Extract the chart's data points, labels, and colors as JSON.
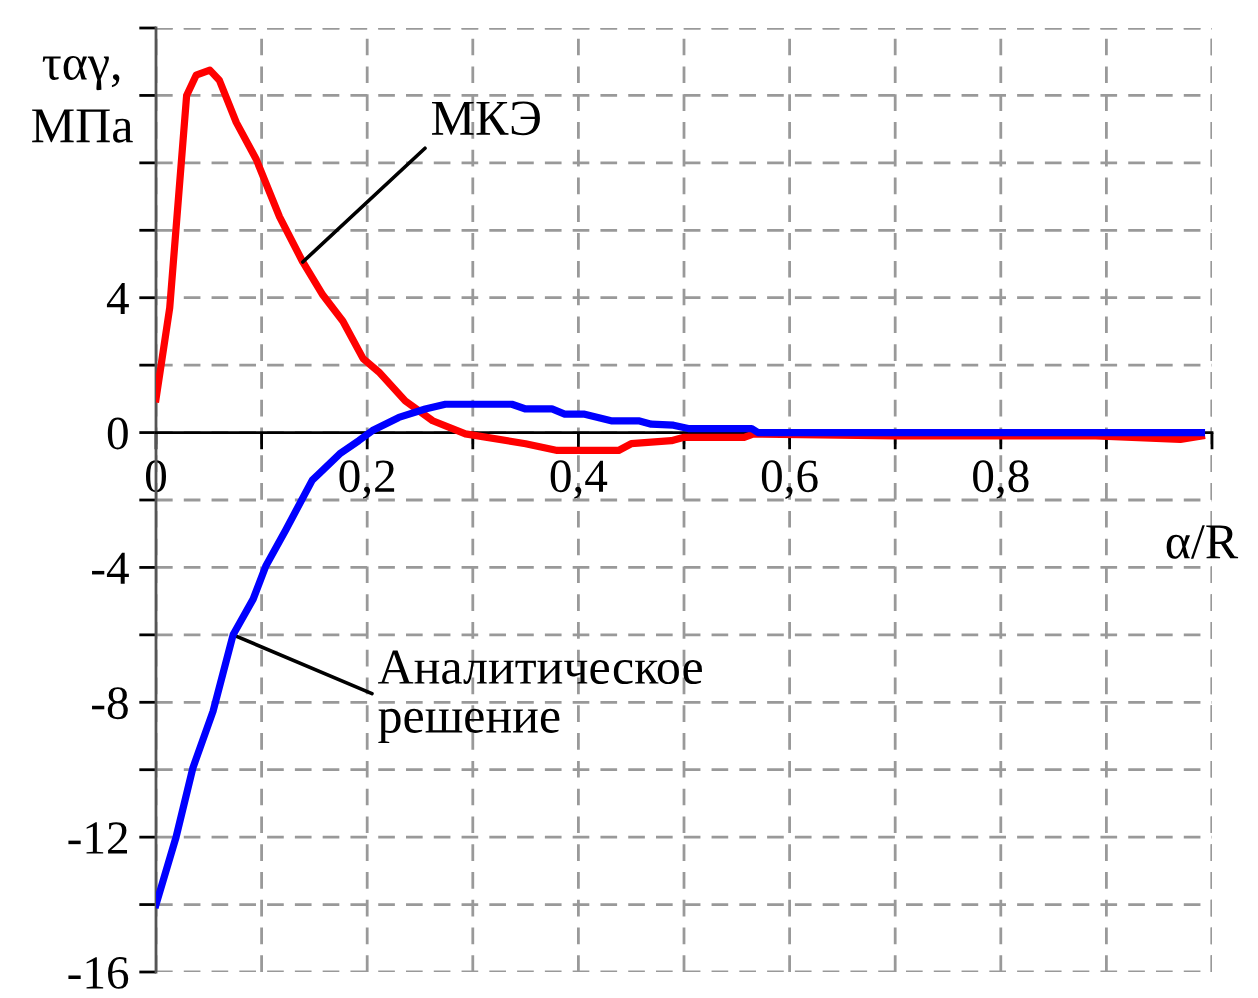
{
  "chart_data": {
    "type": "line",
    "xlabel": "α/R",
    "ylabel": "ταγ,\nМПа",
    "xlim": [
      0,
      1
    ],
    "ylim": [
      -16,
      12
    ],
    "xticks": [
      0,
      {
        "value": 0.1,
        "label": null
      },
      {
        "value": 0.2,
        "label": "0,2"
      },
      {
        "value": 0.3,
        "label": null
      },
      {
        "value": 0.4,
        "label": "0,4"
      },
      {
        "value": 0.5,
        "label": null
      },
      {
        "value": 0.6,
        "label": "0,6"
      },
      {
        "value": 0.7,
        "label": null
      },
      {
        "value": 0.8,
        "label": "0,8"
      },
      {
        "value": 0.9,
        "label": null
      },
      {
        "value": 1,
        "label": null
      }
    ],
    "yticks": [
      -16,
      {
        "value": -14,
        "label": null
      },
      -12,
      {
        "value": -10,
        "label": null
      },
      -8,
      {
        "value": -6,
        "label": null
      },
      -4,
      {
        "value": -2,
        "label": null
      },
      0,
      {
        "value": 2,
        "label": null
      },
      4,
      {
        "value": 6,
        "label": null
      },
      {
        "value": 8,
        "label": null
      },
      {
        "value": 10,
        "label": null
      },
      {
        "value": 12,
        "label": null
      }
    ],
    "grid": true,
    "marker": "none",
    "line_style": "solid",
    "series": [
      {
        "color": "#ff0000",
        "x": [
          0,
          0.013,
          0.029,
          0.038,
          0.051,
          0.06,
          0.076,
          0.095,
          0.117,
          0.139,
          0.158,
          0.177,
          0.196,
          0.211,
          0.236,
          0.262,
          0.293,
          0.35,
          0.38,
          0.438,
          0.45,
          0.488,
          0.5,
          0.557,
          0.566,
          0.7,
          0.89,
          0.97,
          0.99
        ],
        "values": [
          1.0,
          3.7,
          10.0,
          10.6,
          10.75,
          10.45,
          9.2,
          8.1,
          6.4,
          5.06,
          4.08,
          3.3,
          2.2,
          1.8,
          0.94,
          0.35,
          -0.04,
          -0.33,
          -0.53,
          -0.53,
          -0.33,
          -0.24,
          -0.14,
          -0.14,
          -0.04,
          -0.1,
          -0.1,
          -0.2,
          -0.1
        ]
      },
      {
        "color": "#0000ff",
        "x": [
          0,
          0.019,
          0.035,
          0.054,
          0.073,
          0.092,
          0.104,
          0.123,
          0.148,
          0.155,
          0.174,
          0.192,
          0.205,
          0.23,
          0.255,
          0.274,
          0.337,
          0.35,
          0.375,
          0.387,
          0.405,
          0.431,
          0.457,
          0.469,
          0.49,
          0.504,
          0.564,
          0.57,
          0.99
        ],
        "values": [
          -14,
          -12,
          -9.94,
          -8.27,
          -6.0,
          -4.94,
          -3.96,
          -2.88,
          -1.41,
          -1.2,
          -0.63,
          -0.24,
          0.06,
          0.45,
          0.7,
          0.84,
          0.84,
          0.7,
          0.7,
          0.55,
          0.55,
          0.35,
          0.35,
          0.25,
          0.22,
          0.12,
          0.12,
          0,
          0
        ]
      }
    ],
    "annotations": [
      {
        "text": "МКЭ",
        "x": 0.139,
        "y": 5.06
      },
      {
        "text": "Аналитическое\nрешение",
        "x": 0.073,
        "y": -6.0
      }
    ]
  }
}
